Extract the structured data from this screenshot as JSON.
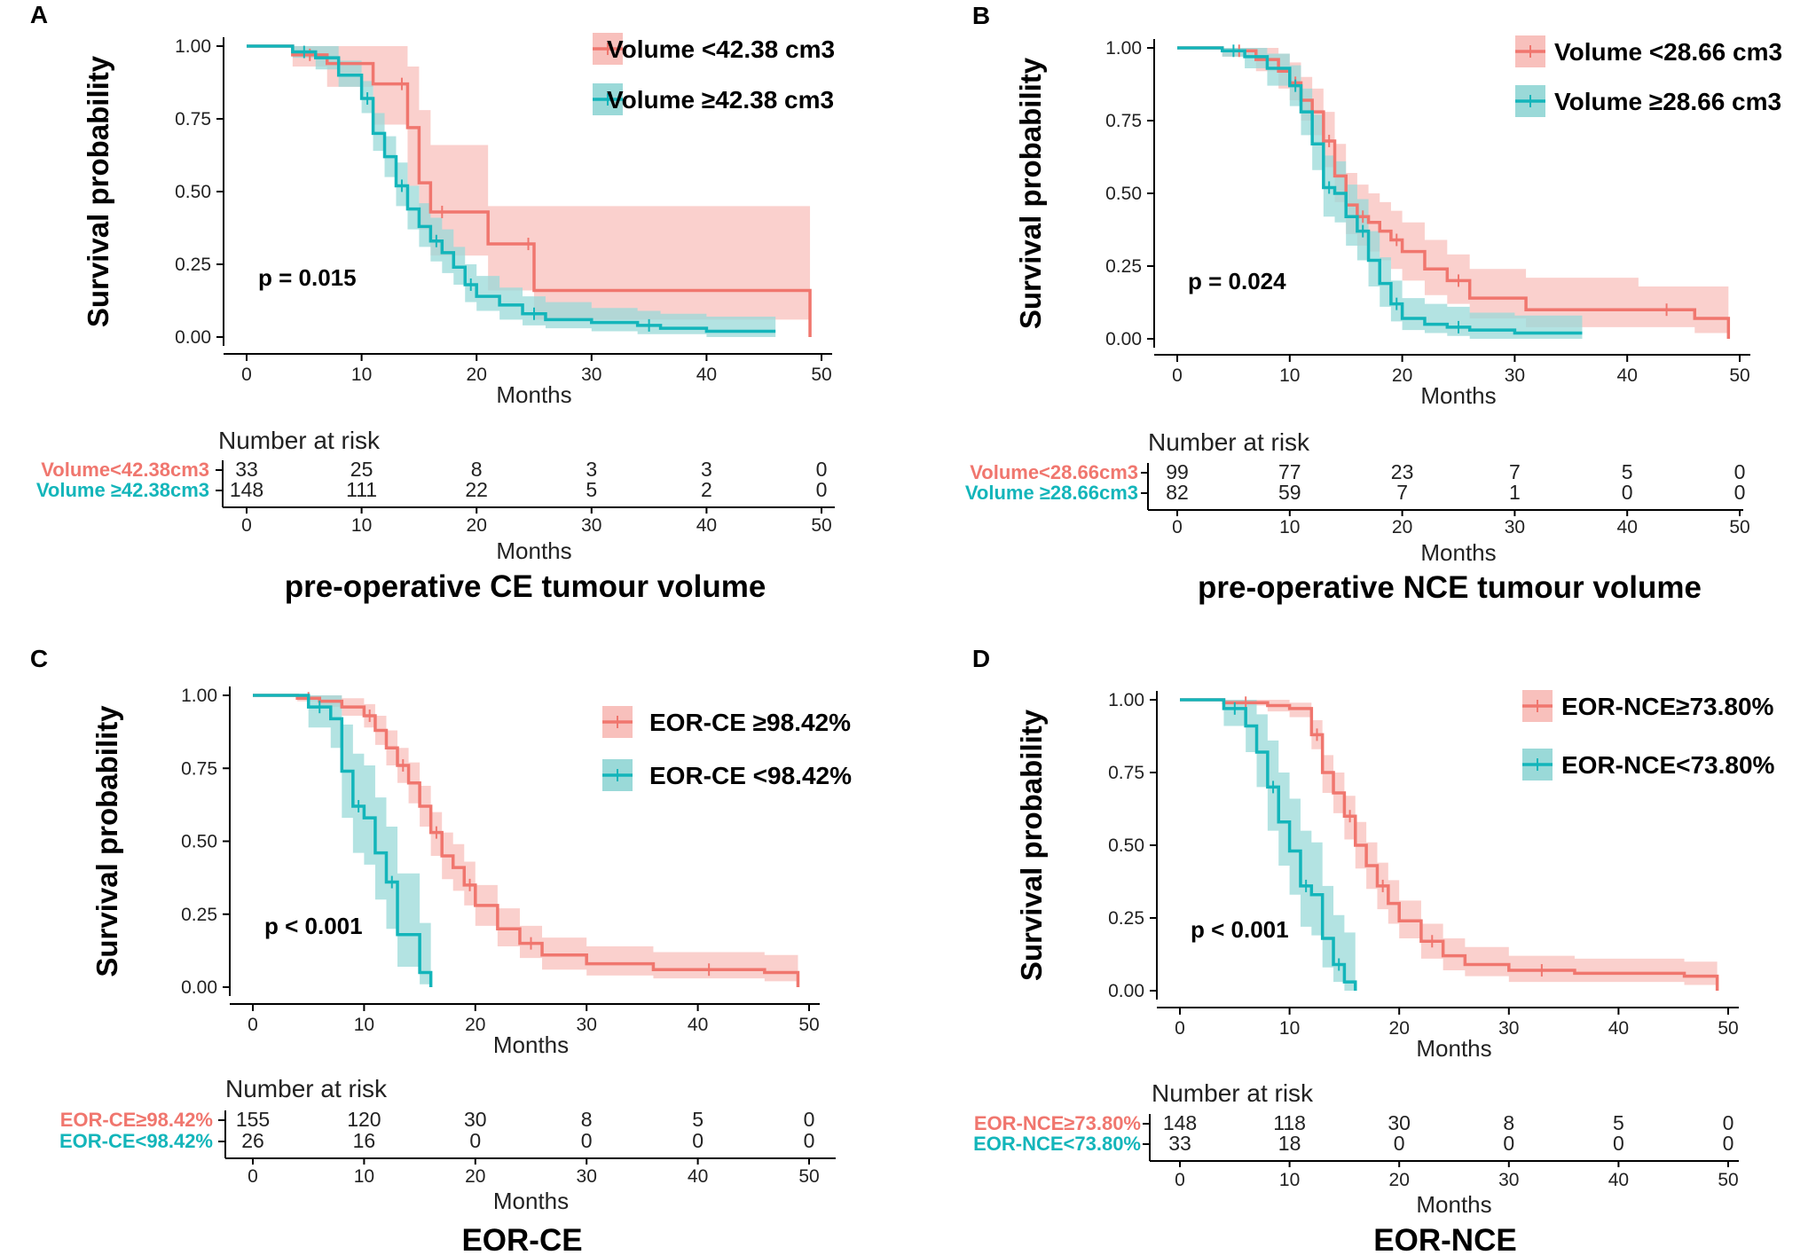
{
  "colors": {
    "red": "#F0766E",
    "teal": "#13B5BA",
    "red_band": "#F8C0BC",
    "teal_band": "#9AD9D8"
  },
  "chart_data": [
    {
      "type": "line",
      "panel": "A",
      "subtitle": "pre-operative CE tumour volume",
      "ylabel": "Survival probability",
      "xlabel": "Months",
      "xlim": [
        0,
        50
      ],
      "ylim": [
        0,
        1
      ],
      "xticks": [
        "0",
        "10",
        "20",
        "30",
        "40",
        "50"
      ],
      "yticks": [
        "0.00",
        "0.25",
        "0.50",
        "0.75",
        "1.00"
      ],
      "pvalue": "p = 0.015",
      "risk_title": "Number at risk",
      "risk_xlabel": "Months",
      "series": [
        {
          "name": "Volume <42.38 cm3",
          "risk_label": "Volume<42.38cm3",
          "color": "red",
          "x": [
            0,
            4,
            7,
            11,
            13,
            14,
            15,
            16,
            18,
            21,
            24,
            25,
            49
          ],
          "y": [
            1.0,
            0.97,
            0.94,
            0.87,
            0.87,
            0.72,
            0.53,
            0.43,
            0.43,
            0.32,
            0.32,
            0.16,
            0.0
          ],
          "lower": [
            1.0,
            0.93,
            0.86,
            0.73,
            0.73,
            0.52,
            0.37,
            0.28,
            0.28,
            0.16,
            0.16,
            0.06,
            0.06
          ],
          "upper": [
            1.0,
            1.0,
            1.0,
            1.0,
            1.0,
            0.93,
            0.78,
            0.66,
            0.66,
            0.45,
            0.45,
            0.45,
            0.45
          ],
          "risk": [
            "33",
            "25",
            "8",
            "3",
            "3",
            "0"
          ]
        },
        {
          "name": "Volume ≥42.38 cm3",
          "risk_label": "Volume ≥42.38cm3",
          "color": "teal",
          "x": [
            0,
            4,
            6,
            8,
            10,
            11,
            12,
            13,
            14,
            15,
            16,
            17,
            18,
            19,
            20,
            22,
            24,
            26,
            30,
            34,
            36,
            40,
            46
          ],
          "y": [
            1.0,
            0.98,
            0.96,
            0.9,
            0.82,
            0.7,
            0.62,
            0.52,
            0.44,
            0.38,
            0.33,
            0.29,
            0.24,
            0.18,
            0.14,
            0.11,
            0.08,
            0.06,
            0.05,
            0.04,
            0.03,
            0.02,
            0.02
          ],
          "lower": [
            1.0,
            0.96,
            0.92,
            0.86,
            0.77,
            0.64,
            0.55,
            0.45,
            0.37,
            0.31,
            0.26,
            0.22,
            0.18,
            0.12,
            0.09,
            0.06,
            0.04,
            0.03,
            0.02,
            0.01,
            0.01,
            0.0,
            0.0
          ],
          "upper": [
            1.0,
            1.0,
            1.0,
            0.95,
            0.88,
            0.77,
            0.69,
            0.6,
            0.52,
            0.46,
            0.41,
            0.37,
            0.31,
            0.25,
            0.21,
            0.17,
            0.14,
            0.12,
            0.1,
            0.09,
            0.08,
            0.07,
            0.07
          ],
          "risk": [
            "148",
            "111",
            "22",
            "5",
            "2",
            "0"
          ]
        }
      ]
    },
    {
      "type": "line",
      "panel": "B",
      "subtitle": "pre-operative NCE tumour volume",
      "ylabel": "Survival probability",
      "xlabel": "Months",
      "xlim": [
        0,
        50
      ],
      "ylim": [
        0,
        1
      ],
      "xticks": [
        "0",
        "10",
        "20",
        "30",
        "40",
        "50"
      ],
      "yticks": [
        "0.00",
        "0.25",
        "0.50",
        "0.75",
        "1.00"
      ],
      "pvalue": "p = 0.024",
      "risk_title": "Number at risk",
      "risk_xlabel": "Months",
      "series": [
        {
          "name": "Volume <28.66 cm3",
          "risk_label": "Volume<28.66cm3",
          "color": "red",
          "x": [
            0,
            4,
            7,
            9,
            10,
            11,
            12,
            13,
            14,
            15,
            16,
            17,
            18,
            19,
            20,
            22,
            24,
            26,
            31,
            41,
            46,
            49
          ],
          "y": [
            1.0,
            0.99,
            0.96,
            0.92,
            0.88,
            0.82,
            0.78,
            0.68,
            0.56,
            0.46,
            0.42,
            0.4,
            0.37,
            0.34,
            0.3,
            0.24,
            0.2,
            0.14,
            0.1,
            0.1,
            0.07,
            0.0
          ],
          "lower": [
            1.0,
            0.97,
            0.92,
            0.86,
            0.82,
            0.75,
            0.7,
            0.59,
            0.47,
            0.36,
            0.32,
            0.3,
            0.27,
            0.24,
            0.2,
            0.15,
            0.12,
            0.07,
            0.04,
            0.04,
            0.02,
            0.02
          ],
          "upper": [
            1.0,
            1.0,
            1.0,
            0.98,
            0.95,
            0.9,
            0.86,
            0.78,
            0.67,
            0.57,
            0.53,
            0.5,
            0.47,
            0.44,
            0.4,
            0.34,
            0.29,
            0.24,
            0.21,
            0.18,
            0.18,
            0.18
          ],
          "risk": [
            "99",
            "77",
            "23",
            "7",
            "5",
            "0"
          ]
        },
        {
          "name": "Volume ≥28.66 cm3",
          "risk_label": "Volume ≥28.66cm3",
          "color": "teal",
          "x": [
            0,
            4,
            6,
            8,
            10,
            11,
            12,
            13,
            14,
            15,
            16,
            17,
            18,
            19,
            20,
            22,
            24,
            26,
            30,
            36
          ],
          "y": [
            1.0,
            0.99,
            0.97,
            0.93,
            0.87,
            0.78,
            0.67,
            0.52,
            0.5,
            0.42,
            0.37,
            0.27,
            0.19,
            0.12,
            0.07,
            0.05,
            0.04,
            0.03,
            0.02,
            0.02
          ],
          "lower": [
            1.0,
            0.97,
            0.93,
            0.87,
            0.8,
            0.7,
            0.58,
            0.42,
            0.4,
            0.32,
            0.27,
            0.18,
            0.11,
            0.06,
            0.03,
            0.02,
            0.01,
            0.0,
            0.0,
            0.0
          ],
          "upper": [
            1.0,
            1.0,
            1.0,
            0.98,
            0.94,
            0.86,
            0.77,
            0.63,
            0.61,
            0.53,
            0.48,
            0.37,
            0.28,
            0.2,
            0.14,
            0.12,
            0.11,
            0.09,
            0.08,
            0.08
          ],
          "risk": [
            "82",
            "59",
            "7",
            "1",
            "0",
            "0"
          ]
        }
      ]
    },
    {
      "type": "line",
      "panel": "C",
      "subtitle": "EOR-CE",
      "ylabel": "Survival probability",
      "xlabel": "Months",
      "xlim": [
        0,
        50
      ],
      "ylim": [
        0,
        1
      ],
      "xticks": [
        "0",
        "10",
        "20",
        "30",
        "40",
        "50"
      ],
      "yticks": [
        "0.00",
        "0.25",
        "0.50",
        "0.75",
        "1.00"
      ],
      "pvalue": "p < 0.001",
      "risk_title": "Number at risk",
      "risk_xlabel": "Months",
      "series": [
        {
          "name": "EOR-CE ≥98.42%",
          "risk_label": "EOR-CE≥98.42%",
          "color": "red",
          "x": [
            0,
            4,
            6,
            8,
            10,
            11,
            12,
            13,
            14,
            15,
            16,
            17,
            18,
            19,
            20,
            22,
            24,
            26,
            30,
            36,
            46,
            49
          ],
          "y": [
            1.0,
            0.99,
            0.98,
            0.96,
            0.93,
            0.88,
            0.82,
            0.76,
            0.7,
            0.62,
            0.53,
            0.45,
            0.41,
            0.35,
            0.28,
            0.2,
            0.15,
            0.11,
            0.08,
            0.06,
            0.05,
            0.0
          ],
          "lower": [
            1.0,
            0.98,
            0.96,
            0.93,
            0.89,
            0.83,
            0.76,
            0.7,
            0.63,
            0.55,
            0.45,
            0.37,
            0.33,
            0.28,
            0.21,
            0.14,
            0.1,
            0.06,
            0.04,
            0.03,
            0.02,
            0.02
          ],
          "upper": [
            1.0,
            1.0,
            1.0,
            0.99,
            0.97,
            0.93,
            0.88,
            0.82,
            0.77,
            0.69,
            0.6,
            0.53,
            0.49,
            0.43,
            0.35,
            0.27,
            0.21,
            0.17,
            0.14,
            0.12,
            0.11,
            0.11
          ],
          "risk": [
            "155",
            "120",
            "30",
            "8",
            "5",
            "0"
          ]
        },
        {
          "name": "EOR-CE <98.42%",
          "risk_label": "EOR-CE<98.42%",
          "color": "teal",
          "x": [
            0,
            5,
            7,
            8,
            9,
            10,
            11,
            12,
            13,
            15,
            16
          ],
          "y": [
            1.0,
            0.96,
            0.92,
            0.74,
            0.62,
            0.58,
            0.46,
            0.36,
            0.18,
            0.05,
            0.0
          ],
          "lower": [
            1.0,
            0.89,
            0.82,
            0.58,
            0.46,
            0.42,
            0.3,
            0.2,
            0.07,
            0.01,
            0.0
          ],
          "upper": [
            1.0,
            1.0,
            1.0,
            0.9,
            0.8,
            0.76,
            0.65,
            0.55,
            0.39,
            0.22,
            0.22
          ],
          "risk": [
            "26",
            "16",
            "0",
            "0",
            "0",
            "0"
          ]
        }
      ]
    },
    {
      "type": "line",
      "panel": "D",
      "subtitle": "EOR-NCE",
      "ylabel": "Survival probability",
      "xlabel": "Months",
      "xlim": [
        0,
        50
      ],
      "ylim": [
        0,
        1
      ],
      "xticks": [
        "0",
        "10",
        "20",
        "30",
        "40",
        "50"
      ],
      "yticks": [
        "0.00",
        "0.25",
        "0.50",
        "0.75",
        "1.00"
      ],
      "pvalue": "p < 0.001",
      "risk_title": "Number at risk",
      "risk_xlabel": "Months",
      "series": [
        {
          "name": "EOR-NCE≥73.80%",
          "risk_label": "EOR-NCE≥73.80%",
          "color": "red",
          "x": [
            0,
            4,
            8,
            10,
            12,
            13,
            14,
            15,
            16,
            17,
            18,
            19,
            20,
            22,
            24,
            26,
            30,
            36,
            46,
            49
          ],
          "y": [
            1.0,
            0.99,
            0.98,
            0.97,
            0.88,
            0.75,
            0.68,
            0.6,
            0.5,
            0.43,
            0.36,
            0.3,
            0.24,
            0.17,
            0.12,
            0.09,
            0.07,
            0.06,
            0.05,
            0.0
          ],
          "lower": [
            1.0,
            0.98,
            0.96,
            0.94,
            0.83,
            0.68,
            0.61,
            0.52,
            0.42,
            0.35,
            0.28,
            0.23,
            0.18,
            0.11,
            0.07,
            0.05,
            0.03,
            0.03,
            0.02,
            0.02
          ],
          "upper": [
            1.0,
            1.0,
            1.0,
            0.99,
            0.93,
            0.81,
            0.75,
            0.67,
            0.58,
            0.51,
            0.44,
            0.38,
            0.31,
            0.23,
            0.18,
            0.15,
            0.12,
            0.11,
            0.1,
            0.1
          ],
          "risk": [
            "148",
            "118",
            "30",
            "8",
            "5",
            "0"
          ]
        },
        {
          "name": "EOR-NCE<73.80%",
          "risk_label": "EOR-NCE<73.80%",
          "color": "teal",
          "x": [
            0,
            4,
            6,
            7,
            8,
            9,
            10,
            11,
            12,
            13,
            14,
            15,
            16
          ],
          "y": [
            1.0,
            0.97,
            0.91,
            0.82,
            0.7,
            0.58,
            0.48,
            0.36,
            0.33,
            0.18,
            0.09,
            0.03,
            0.0
          ],
          "lower": [
            1.0,
            0.91,
            0.82,
            0.7,
            0.55,
            0.43,
            0.33,
            0.22,
            0.19,
            0.08,
            0.03,
            0.0,
            0.0
          ],
          "upper": [
            1.0,
            1.0,
            1.0,
            0.95,
            0.86,
            0.75,
            0.66,
            0.55,
            0.51,
            0.36,
            0.26,
            0.2,
            0.2
          ],
          "risk": [
            "33",
            "18",
            "0",
            "0",
            "0",
            "0"
          ]
        }
      ]
    }
  ]
}
